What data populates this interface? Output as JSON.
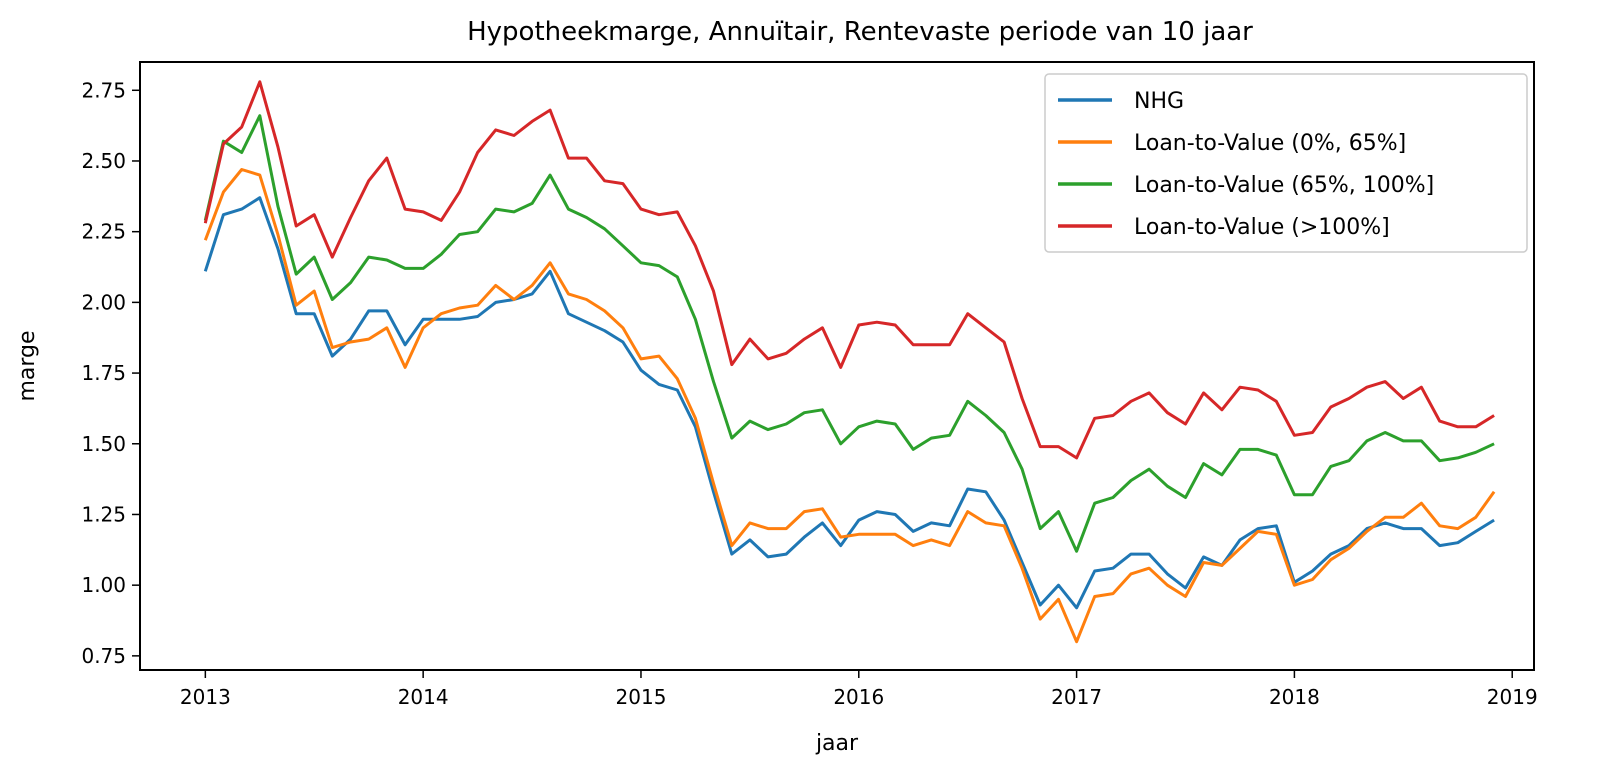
{
  "chart_data": {
    "type": "line",
    "title": "Hypotheekmarge, Annuïtair, Rentevaste periode van 10 jaar",
    "xlabel": "jaar",
    "ylabel": "marge",
    "xlim": [
      2012.7,
      2019.1
    ],
    "ylim": [
      0.7,
      2.85
    ],
    "xticks": [
      2013,
      2014,
      2015,
      2016,
      2017,
      2018,
      2019
    ],
    "xtick_labels": [
      "2013",
      "2014",
      "2015",
      "2016",
      "2017",
      "2018",
      "2019"
    ],
    "yticks": [
      0.75,
      1.0,
      1.25,
      1.5,
      1.75,
      2.0,
      2.25,
      2.5,
      2.75
    ],
    "ytick_labels": [
      "0.75",
      "1.00",
      "1.25",
      "1.50",
      "1.75",
      "2.00",
      "2.25",
      "2.50",
      "2.75"
    ],
    "grid": false,
    "legend_position": "top-right",
    "x": [
      2013.0,
      2013.083,
      2013.167,
      2013.25,
      2013.333,
      2013.417,
      2013.5,
      2013.583,
      2013.667,
      2013.75,
      2013.833,
      2013.917,
      2014.0,
      2014.083,
      2014.167,
      2014.25,
      2014.333,
      2014.417,
      2014.5,
      2014.583,
      2014.667,
      2014.75,
      2014.833,
      2014.917,
      2015.0,
      2015.083,
      2015.167,
      2015.25,
      2015.333,
      2015.417,
      2015.5,
      2015.583,
      2015.667,
      2015.75,
      2015.833,
      2015.917,
      2016.0,
      2016.083,
      2016.167,
      2016.25,
      2016.333,
      2016.417,
      2016.5,
      2016.583,
      2016.667,
      2016.75,
      2016.833,
      2016.917,
      2017.0,
      2017.083,
      2017.167,
      2017.25,
      2017.333,
      2017.417,
      2017.5,
      2017.583,
      2017.667,
      2017.75,
      2017.833,
      2017.917,
      2018.0,
      2018.083,
      2018.167,
      2018.25,
      2018.333,
      2018.417,
      2018.5,
      2018.583,
      2018.667,
      2018.75,
      2018.833,
      2018.917
    ],
    "series": [
      {
        "name": "NHG",
        "color": "#1f77b4",
        "values": [
          2.11,
          2.31,
          2.33,
          2.37,
          2.19,
          1.96,
          1.96,
          1.81,
          1.87,
          1.97,
          1.97,
          1.85,
          1.94,
          1.94,
          1.94,
          1.95,
          2.0,
          2.01,
          2.03,
          2.11,
          1.96,
          1.93,
          1.9,
          1.86,
          1.76,
          1.71,
          1.69,
          1.56,
          1.33,
          1.11,
          1.16,
          1.1,
          1.11,
          1.17,
          1.22,
          1.14,
          1.23,
          1.26,
          1.25,
          1.19,
          1.22,
          1.21,
          1.34,
          1.33,
          1.23,
          1.08,
          0.93,
          1.0,
          0.92,
          1.05,
          1.06,
          1.11,
          1.11,
          1.04,
          0.99,
          1.1,
          1.07,
          1.16,
          1.2,
          1.21,
          1.01,
          1.05,
          1.11,
          1.14,
          1.2,
          1.22,
          1.2,
          1.2,
          1.14,
          1.15,
          1.19,
          1.23
        ]
      },
      {
        "name": "Loan-to-Value (0%, 65%]",
        "color": "#ff7f0e",
        "values": [
          2.22,
          2.39,
          2.47,
          2.45,
          2.24,
          1.99,
          2.04,
          1.84,
          1.86,
          1.87,
          1.91,
          1.77,
          1.91,
          1.96,
          1.98,
          1.99,
          2.06,
          2.01,
          2.06,
          2.14,
          2.03,
          2.01,
          1.97,
          1.91,
          1.8,
          1.81,
          1.73,
          1.59,
          1.36,
          1.14,
          1.22,
          1.2,
          1.2,
          1.26,
          1.27,
          1.17,
          1.18,
          1.18,
          1.18,
          1.14,
          1.16,
          1.14,
          1.26,
          1.22,
          1.21,
          1.06,
          0.88,
          0.95,
          0.8,
          0.96,
          0.97,
          1.04,
          1.06,
          1.0,
          0.96,
          1.08,
          1.07,
          1.13,
          1.19,
          1.18,
          1.0,
          1.02,
          1.09,
          1.13,
          1.19,
          1.24,
          1.24,
          1.29,
          1.21,
          1.2,
          1.24,
          1.33
        ]
      },
      {
        "name": "Loan-to-Value (65%, 100%]",
        "color": "#2ca02c",
        "values": [
          2.29,
          2.57,
          2.53,
          2.66,
          2.34,
          2.1,
          2.16,
          2.01,
          2.07,
          2.16,
          2.15,
          2.12,
          2.12,
          2.17,
          2.24,
          2.25,
          2.33,
          2.32,
          2.35,
          2.45,
          2.33,
          2.3,
          2.26,
          2.2,
          2.14,
          2.13,
          2.09,
          1.94,
          1.72,
          1.52,
          1.58,
          1.55,
          1.57,
          1.61,
          1.62,
          1.5,
          1.56,
          1.58,
          1.57,
          1.48,
          1.52,
          1.53,
          1.65,
          1.6,
          1.54,
          1.41,
          1.2,
          1.26,
          1.12,
          1.29,
          1.31,
          1.37,
          1.41,
          1.35,
          1.31,
          1.43,
          1.39,
          1.48,
          1.48,
          1.46,
          1.32,
          1.32,
          1.42,
          1.44,
          1.51,
          1.54,
          1.51,
          1.51,
          1.44,
          1.45,
          1.47,
          1.5
        ]
      },
      {
        "name": "Loan-to-Value (>100%]",
        "color": "#d62728",
        "values": [
          2.28,
          2.56,
          2.62,
          2.78,
          2.55,
          2.27,
          2.31,
          2.16,
          2.3,
          2.43,
          2.51,
          2.33,
          2.32,
          2.29,
          2.39,
          2.53,
          2.61,
          2.59,
          2.64,
          2.68,
          2.51,
          2.51,
          2.43,
          2.42,
          2.33,
          2.31,
          2.32,
          2.2,
          2.04,
          1.78,
          1.87,
          1.8,
          1.82,
          1.87,
          1.91,
          1.77,
          1.92,
          1.93,
          1.92,
          1.85,
          1.85,
          1.85,
          1.96,
          1.91,
          1.86,
          1.66,
          1.49,
          1.49,
          1.45,
          1.59,
          1.6,
          1.65,
          1.68,
          1.61,
          1.57,
          1.68,
          1.62,
          1.7,
          1.69,
          1.65,
          1.53,
          1.54,
          1.63,
          1.66,
          1.7,
          1.72,
          1.66,
          1.7,
          1.58,
          1.56,
          1.56,
          1.6
        ]
      }
    ]
  }
}
